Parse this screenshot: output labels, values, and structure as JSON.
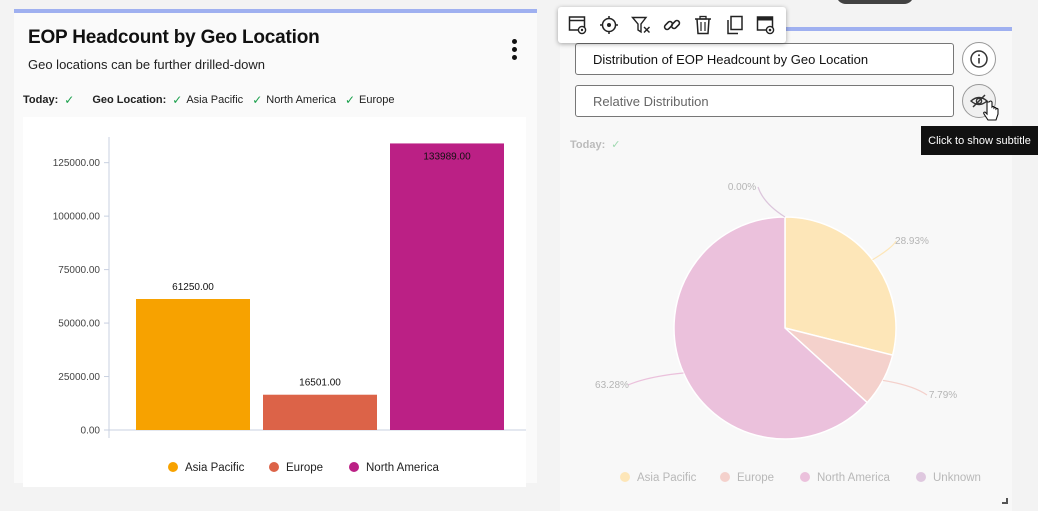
{
  "left_card": {
    "title": "EOP Headcount by Geo Location",
    "subtitle": "Geo locations can be further drilled-down",
    "filters": {
      "today_label": "Today:",
      "geo_label": "Geo Location:",
      "geo_values": [
        "Asia Pacific",
        "North America",
        "Europe"
      ]
    }
  },
  "right_panel": {
    "title_field_value": "Distribution of EOP Headcount by Geo Location",
    "subtitle_field_value": "Relative Distribution",
    "tooltip": "Click to show subtitle",
    "today_label": "Today:"
  },
  "toolbar": {
    "icons": [
      "settings-window-icon",
      "target-icon",
      "clear-filter-icon",
      "link-icon",
      "trash-icon",
      "copy-icon",
      "window-settings-icon"
    ]
  },
  "colors": {
    "asia_pacific": "#f7a200",
    "europe": "#dc6348",
    "north_america": "#bb2085",
    "unknown": "#c6a0c6",
    "check": "#1aa04b"
  },
  "chart_data": [
    {
      "type": "bar",
      "categories": [
        "Asia Pacific",
        "Europe",
        "North America"
      ],
      "values": [
        61250.0,
        16501.0,
        133989.0
      ],
      "data_labels": [
        "61250.00",
        "16501.00",
        "133989.00"
      ],
      "yticks": [
        "0.00",
        "25000.00",
        "50000.00",
        "75000.00",
        "100000.00",
        "125000.00"
      ],
      "ylim": [
        0,
        137000
      ],
      "legend": [
        "Asia Pacific",
        "Europe",
        "North America"
      ],
      "legend_position": "bottom"
    },
    {
      "type": "pie",
      "labels": [
        "Asia Pacific",
        "Europe",
        "North America",
        "Unknown"
      ],
      "values": [
        28.93,
        7.79,
        63.28,
        0.0
      ],
      "data_labels": [
        "28.93%",
        "7.79%",
        "63.28%",
        "0.00%"
      ],
      "colors": [
        "#fde6b8",
        "#f4d1cc",
        "#ebc1dc",
        "#dcc6dc"
      ],
      "legend": [
        "Asia Pacific",
        "Europe",
        "North America",
        "Unknown"
      ],
      "legend_colors": [
        "#fde6b8",
        "#f4d1cc",
        "#ebc1dc",
        "#dfc8df"
      ],
      "legend_position": "bottom"
    }
  ]
}
